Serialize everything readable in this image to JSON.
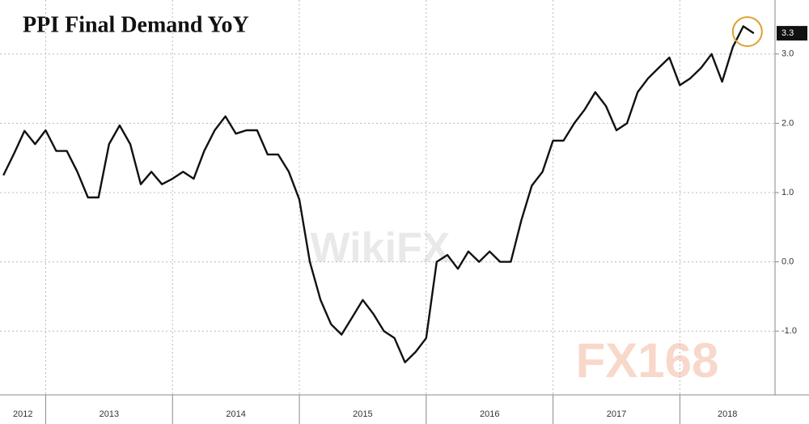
{
  "chart_data": {
    "type": "line",
    "title": "PPI Final Demand YoY",
    "x": [
      2012.667,
      2012.75,
      2012.833,
      2012.917,
      2013.0,
      2013.083,
      2013.167,
      2013.25,
      2013.333,
      2013.417,
      2013.5,
      2013.583,
      2013.667,
      2013.75,
      2013.833,
      2013.917,
      2014.0,
      2014.083,
      2014.167,
      2014.25,
      2014.333,
      2014.417,
      2014.5,
      2014.583,
      2014.667,
      2014.75,
      2014.833,
      2014.917,
      2015.0,
      2015.083,
      2015.167,
      2015.25,
      2015.333,
      2015.417,
      2015.5,
      2015.583,
      2015.667,
      2015.75,
      2015.833,
      2015.917,
      2016.0,
      2016.083,
      2016.167,
      2016.25,
      2016.333,
      2016.417,
      2016.5,
      2016.583,
      2016.667,
      2016.75,
      2016.833,
      2016.917,
      2017.0,
      2017.083,
      2017.167,
      2017.25,
      2017.333,
      2017.417,
      2017.5,
      2017.583,
      2017.667,
      2017.75,
      2017.833,
      2017.917,
      2018.0,
      2018.083,
      2018.167,
      2018.25,
      2018.333,
      2018.417,
      2018.5,
      2018.583
    ],
    "values": [
      1.25,
      1.56,
      1.89,
      1.7,
      1.9,
      1.6,
      1.6,
      1.3,
      0.93,
      0.93,
      1.7,
      1.97,
      1.7,
      1.12,
      1.3,
      1.12,
      1.2,
      1.3,
      1.2,
      1.6,
      1.9,
      2.1,
      1.85,
      1.9,
      1.9,
      1.55,
      1.55,
      1.3,
      0.9,
      0.0,
      -0.55,
      -0.9,
      -1.05,
      -0.8,
      -0.55,
      -0.75,
      -1.0,
      -1.1,
      -1.45,
      -1.3,
      -1.1,
      0.0,
      0.1,
      -0.1,
      0.15,
      0.0,
      0.15,
      0.0,
      0.0,
      0.6,
      1.1,
      1.3,
      1.75,
      1.75,
      2.0,
      2.2,
      2.45,
      2.25,
      1.9,
      2.0,
      2.45,
      2.65,
      2.8,
      2.95,
      2.55,
      2.65,
      2.8,
      3.0,
      2.6,
      3.1,
      3.4,
      3.3
    ],
    "color": "#111111",
    "xlim": [
      2012.64,
      2018.75
    ],
    "xticks": [
      2013,
      2014,
      2015,
      2016,
      2017,
      2018
    ],
    "x_labels": [
      "2012",
      "2013",
      "2014",
      "2015",
      "2016",
      "2017",
      "2018"
    ],
    "ylim": [
      -1.92,
      3.78
    ],
    "yticks": [
      {
        "value": -1,
        "label": "-1.0"
      },
      {
        "value": 0,
        "label": "0.0"
      },
      {
        "value": 1,
        "label": "1.0"
      },
      {
        "value": 2,
        "label": "2.0"
      },
      {
        "value": 3,
        "label": "3.0"
      }
    ],
    "grid": true,
    "highlight_color": "#e0a030",
    "watermarks": [
      "WikiFX",
      "FX168"
    ]
  }
}
